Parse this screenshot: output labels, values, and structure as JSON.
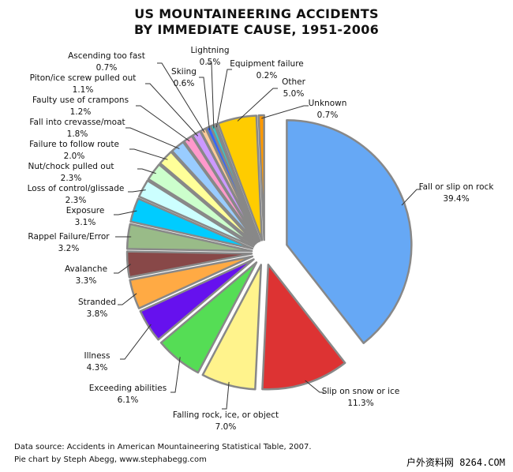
{
  "chart_data": {
    "type": "pie",
    "title": "US MOUNTAINEERING ACCIDENTS",
    "subtitle": "BY IMMEDIATE CAUSE, 1951-2006",
    "unit": "%",
    "slices": [
      {
        "label": "Fall or slip on rock",
        "value": 39.4,
        "pct": "39.4%",
        "color": "#66a8f5"
      },
      {
        "label": "Slip on snow or ice",
        "value": 11.3,
        "pct": "11.3%",
        "color": "#dd3333"
      },
      {
        "label": "Falling rock, ice, or object",
        "value": 7.0,
        "pct": "7.0%",
        "color": "#fff38c"
      },
      {
        "label": "Exceeding abilities",
        "value": 6.1,
        "pct": "6.1%",
        "color": "#55dd55"
      },
      {
        "label": "Illness",
        "value": 4.3,
        "pct": "4.3%",
        "color": "#6611ee"
      },
      {
        "label": "Stranded",
        "value": 3.8,
        "pct": "3.8%",
        "color": "#ffaa44"
      },
      {
        "label": "Avalanche",
        "value": 3.3,
        "pct": "3.3%",
        "color": "#884848"
      },
      {
        "label": "Rappel Failure/Error",
        "value": 3.2,
        "pct": "3.2%",
        "color": "#99bb88"
      },
      {
        "label": "Exposure",
        "value": 3.1,
        "pct": "3.1%",
        "color": "#00ccff"
      },
      {
        "label": "Loss of control/glissade",
        "value": 2.3,
        "pct": "2.3%",
        "color": "#ccffff"
      },
      {
        "label": "Nut/chock pulled out",
        "value": 2.3,
        "pct": "2.3%",
        "color": "#ccffcc"
      },
      {
        "label": "Failure to follow route",
        "value": 2.0,
        "pct": "2.0%",
        "color": "#ffff99"
      },
      {
        "label": "Fall into crevasse/moat",
        "value": 1.8,
        "pct": "1.8%",
        "color": "#99ccff"
      },
      {
        "label": "Faulty use of crampons",
        "value": 1.2,
        "pct": "1.2%",
        "color": "#ff99cc"
      },
      {
        "label": "Piton/ice screw pulled out",
        "value": 1.1,
        "pct": "1.1%",
        "color": "#cc99ff"
      },
      {
        "label": "Ascending too fast",
        "value": 0.7,
        "pct": "0.7%",
        "color": "#ffcc99"
      },
      {
        "label": "Skiing",
        "value": 0.6,
        "pct": "0.6%",
        "color": "#3366ff"
      },
      {
        "label": "Lightning",
        "value": 0.5,
        "pct": "0.5%",
        "color": "#33cccc"
      },
      {
        "label": "Equipment failure",
        "value": 0.2,
        "pct": "0.2%",
        "color": "#99cc33"
      },
      {
        "label": "Other",
        "value": 5.0,
        "pct": "5.0%",
        "color": "#ffcc00"
      },
      {
        "label": "Unknown",
        "value": 0.7,
        "pct": "0.7%",
        "color": "#ff9900"
      }
    ],
    "legend": "none (direct labels)"
  },
  "footer": {
    "source": "Data source: Accidents in American Mountaineering Statistical Table, 2007.",
    "credit": "Pie chart by Steph Abegg, www.stephabegg.com"
  },
  "watermark": "户外资料网 8264.COM"
}
